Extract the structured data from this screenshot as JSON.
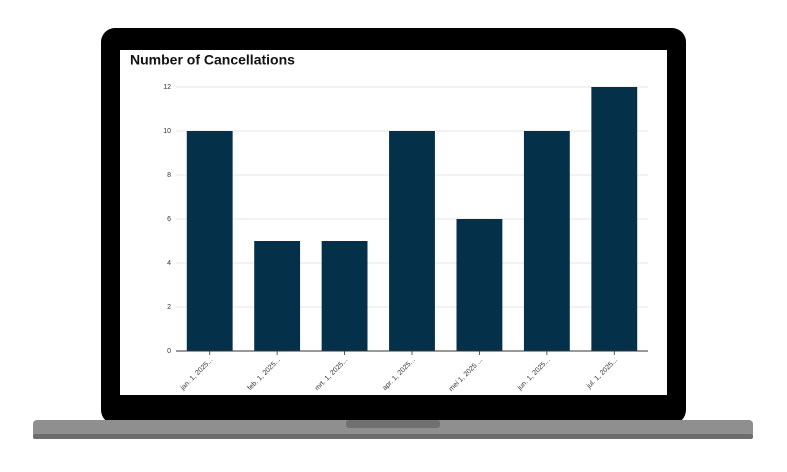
{
  "chart_data": {
    "type": "bar",
    "title": "Number of Cancellations",
    "categories": [
      "jan. 1, 2025...",
      "feb. 1, 2025...",
      "mrt. 1, 2025...",
      "apr. 1, 2025...",
      "mei 1, 2025 ...",
      "jun. 1, 2025...",
      "jul. 1, 2025..."
    ],
    "values": [
      10,
      5,
      5,
      10,
      6,
      10,
      12
    ],
    "color": "#04304a",
    "ylim": [
      0,
      12
    ],
    "yticks": [
      0,
      2,
      4,
      6,
      8,
      10,
      12
    ],
    "grid": true
  }
}
